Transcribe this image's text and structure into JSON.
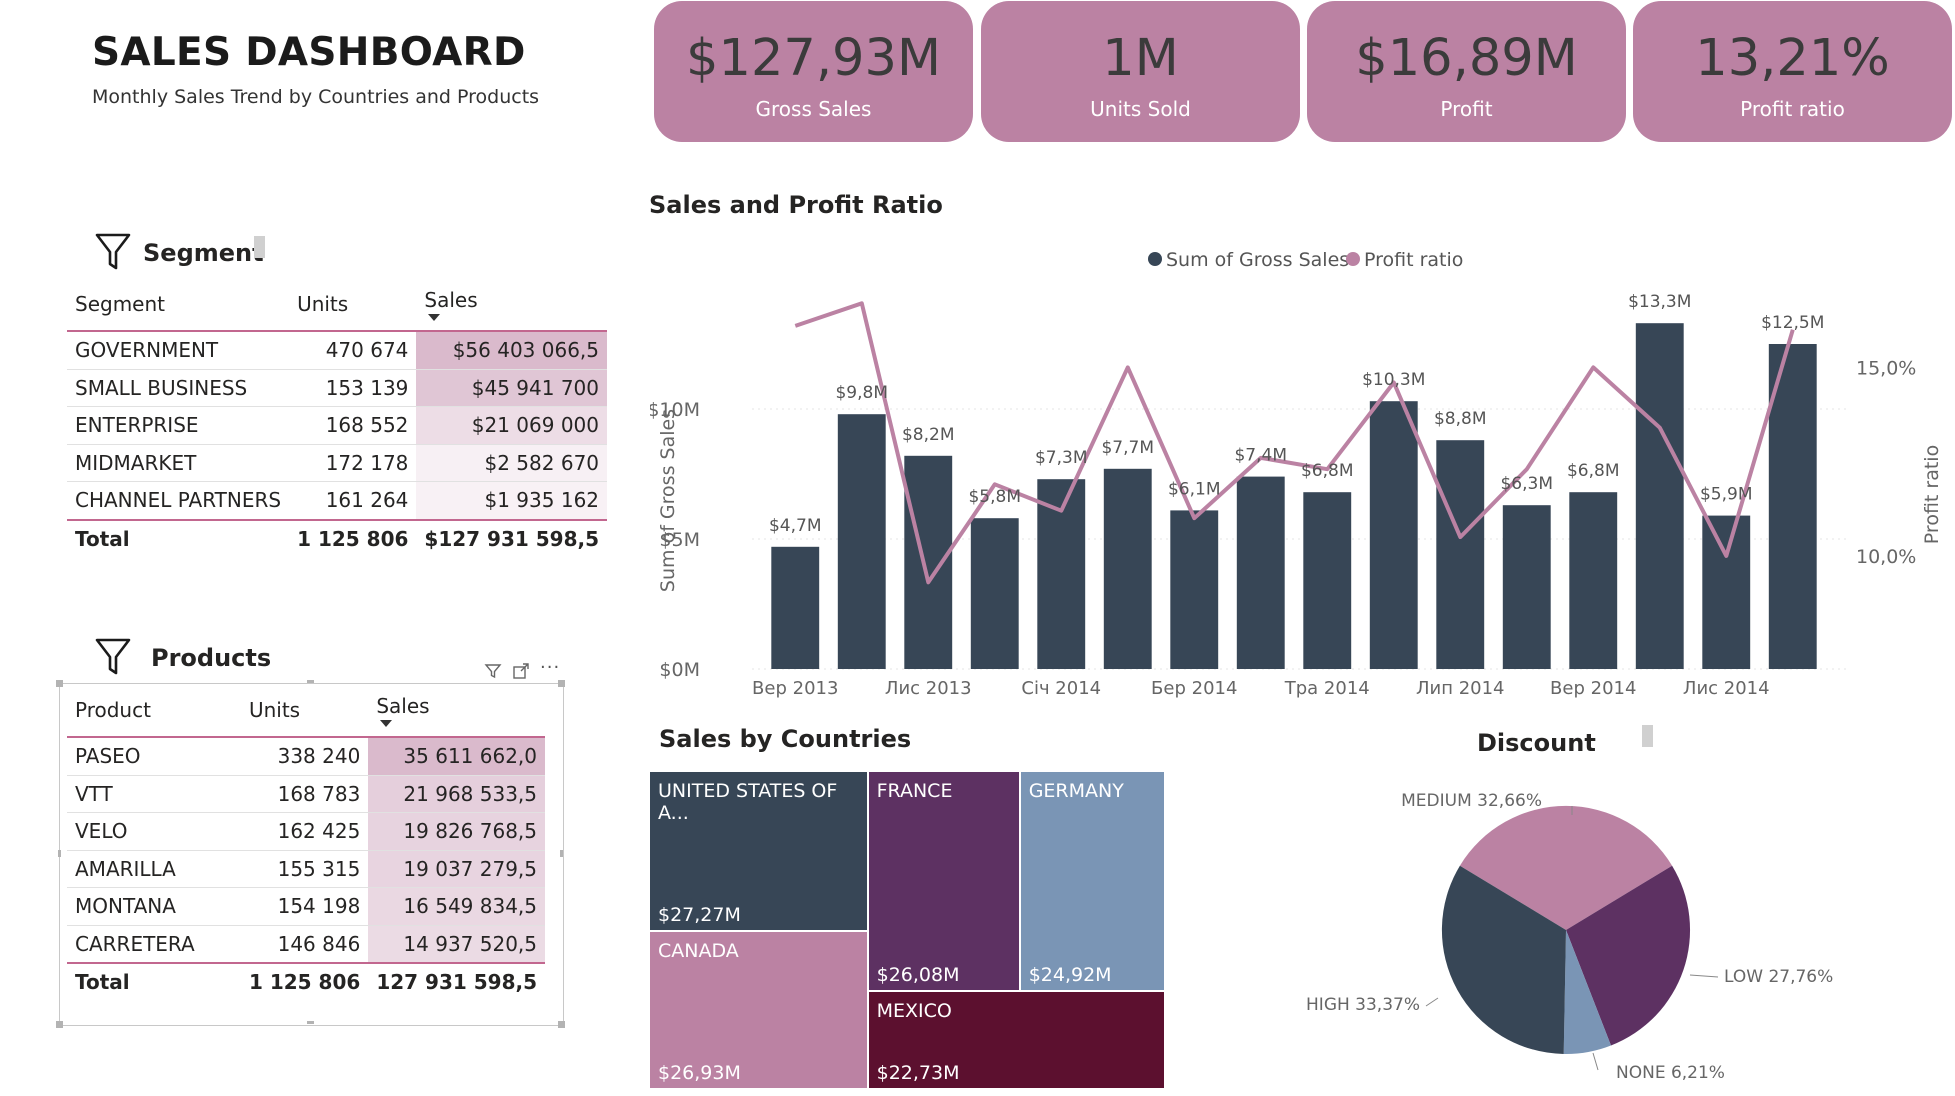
{
  "header": {
    "title": "SALES DASHBOARD",
    "subtitle": "Monthly Sales Trend by Countries and Products"
  },
  "kpis": [
    {
      "value": "$127,93M",
      "label": "Gross Sales"
    },
    {
      "value": "1M",
      "label": "Units Sold"
    },
    {
      "value": "$16,89M",
      "label": "Profit"
    },
    {
      "value": "13,21%",
      "label": "Profit ratio"
    }
  ],
  "segment": {
    "title": "Segment",
    "columns": [
      "Segment",
      "Units",
      "Sales"
    ],
    "rows": [
      {
        "name": "GOVERNMENT",
        "units": "470 674",
        "sales": "$56 403 066,5",
        "share": 1.0
      },
      {
        "name": "SMALL BUSINESS",
        "units": "153 139",
        "sales": "$45 941 700",
        "share": 0.81
      },
      {
        "name": "ENTERPRISE",
        "units": "168 552",
        "sales": "$21 069 000",
        "share": 0.37
      },
      {
        "name": "MIDMARKET",
        "units": "172 178",
        "sales": "$2 582 670",
        "share": 0.05
      },
      {
        "name": "CHANNEL PARTNERS",
        "units": "161 264",
        "sales": "$1 935 162",
        "share": 0.03
      }
    ],
    "total": {
      "name": "Total",
      "units": "1 125 806",
      "sales": "$127 931 598,5"
    }
  },
  "products": {
    "title": "Products",
    "columns": [
      "Product",
      "Units",
      "Sales"
    ],
    "rows": [
      {
        "name": "PASEO",
        "units": "338 240",
        "sales": "35 611 662,0",
        "share": 1.0
      },
      {
        "name": "VTT",
        "units": "168 783",
        "sales": "21 968 533,5",
        "share": 0.62
      },
      {
        "name": "VELO",
        "units": "162 425",
        "sales": "19 826 768,5",
        "share": 0.56
      },
      {
        "name": "AMARILLA",
        "units": "155 315",
        "sales": "19 037 279,5",
        "share": 0.53
      },
      {
        "name": "MONTANA",
        "units": "154 198",
        "sales": "16 549 834,5",
        "share": 0.46
      },
      {
        "name": "CARRETERA",
        "units": "146 846",
        "sales": "14 937 520,5",
        "share": 0.42
      }
    ],
    "total": {
      "name": "Total",
      "units": "1 125 806",
      "sales": "127 931 598,5"
    },
    "header_icons": [
      "filter-icon",
      "focus-mode-icon",
      "more-options-icon"
    ]
  },
  "chart_data": [
    {
      "type": "bar",
      "title": "Sales and Profit Ratio",
      "legend": [
        "Sum of Gross Sales",
        "Profit ratio"
      ],
      "legend_position": "top-center",
      "ylabel": "Sum of Gross Sales",
      "y2label": "Profit ratio",
      "ylim": [
        0,
        14500000
      ],
      "y2lim": [
        0.07,
        0.17
      ],
      "yticks": [
        "$0M",
        "$5M",
        "$10M"
      ],
      "y2ticks": [
        "10,0%",
        "15,0%"
      ],
      "xticks": [
        "Вер 2013",
        "Лис 2013",
        "Січ 2014",
        "Бер 2014",
        "Тра 2014",
        "Лип 2014",
        "Вер 2014",
        "Лис 2014"
      ],
      "series": [
        {
          "name": "Sum of Gross Sales",
          "type": "bar",
          "color": "#374656",
          "values": [
            4700000,
            9800000,
            8200000,
            5800000,
            7300000,
            7700000,
            6100000,
            7400000,
            6800000,
            10300000,
            8800000,
            6300000,
            6800000,
            13300000,
            5900000,
            12500000
          ],
          "labels": [
            "$4,7M",
            "$9,8M",
            "$8,2M",
            "$5,8M",
            "$7,3M",
            "$7,7M",
            "$6,1M",
            "$7,4M",
            "$6,8M",
            "$10,3M",
            "$8,8M",
            "$6,3M",
            "$6,8M",
            "$13,3M",
            "$5,9M",
            "$12,5M"
          ]
        },
        {
          "name": "Profit ratio",
          "type": "line",
          "color": "#bb82a3",
          "values": [
            0.161,
            0.167,
            0.093,
            0.119,
            0.112,
            0.15,
            0.11,
            0.126,
            0.123,
            0.146,
            0.105,
            0.123,
            0.15,
            0.134,
            0.1,
            0.16
          ]
        }
      ]
    },
    {
      "type": "treemap",
      "title": "Sales by Countries",
      "items": [
        {
          "name": "UNITED STATES OF A...",
          "value_label": "$27,27M",
          "value": 27.27,
          "color": "#374656"
        },
        {
          "name": "CANADA",
          "value_label": "$26,93M",
          "value": 26.93,
          "color": "#bb82a3"
        },
        {
          "name": "FRANCE",
          "value_label": "$26,08M",
          "value": 26.08,
          "color": "#5d3162"
        },
        {
          "name": "GERMANY",
          "value_label": "$24,92M",
          "value": 24.92,
          "color": "#7a95b5"
        },
        {
          "name": "MEXICO",
          "value_label": "$22,73M",
          "value": 22.73,
          "color": "#5c102f"
        }
      ]
    },
    {
      "type": "pie",
      "title": "Discount",
      "slices": [
        {
          "name": "MEDIUM",
          "value": 32.66,
          "label": "MEDIUM 32,66%",
          "color": "#bb82a3"
        },
        {
          "name": "LOW",
          "value": 27.76,
          "label": "LOW 27,76%",
          "color": "#5d3162"
        },
        {
          "name": "NONE",
          "value": 6.21,
          "label": "NONE 6,21%",
          "color": "#7a95b5"
        },
        {
          "name": "HIGH",
          "value": 33.37,
          "label": "HIGH 33,37%",
          "color": "#374656"
        }
      ]
    }
  ],
  "colors": {
    "accent": "#bb82a3",
    "dark": "#374656",
    "purple": "#5d3162",
    "steel": "#7a95b5",
    "wine": "#5c102f",
    "rule": "#c2678f"
  }
}
